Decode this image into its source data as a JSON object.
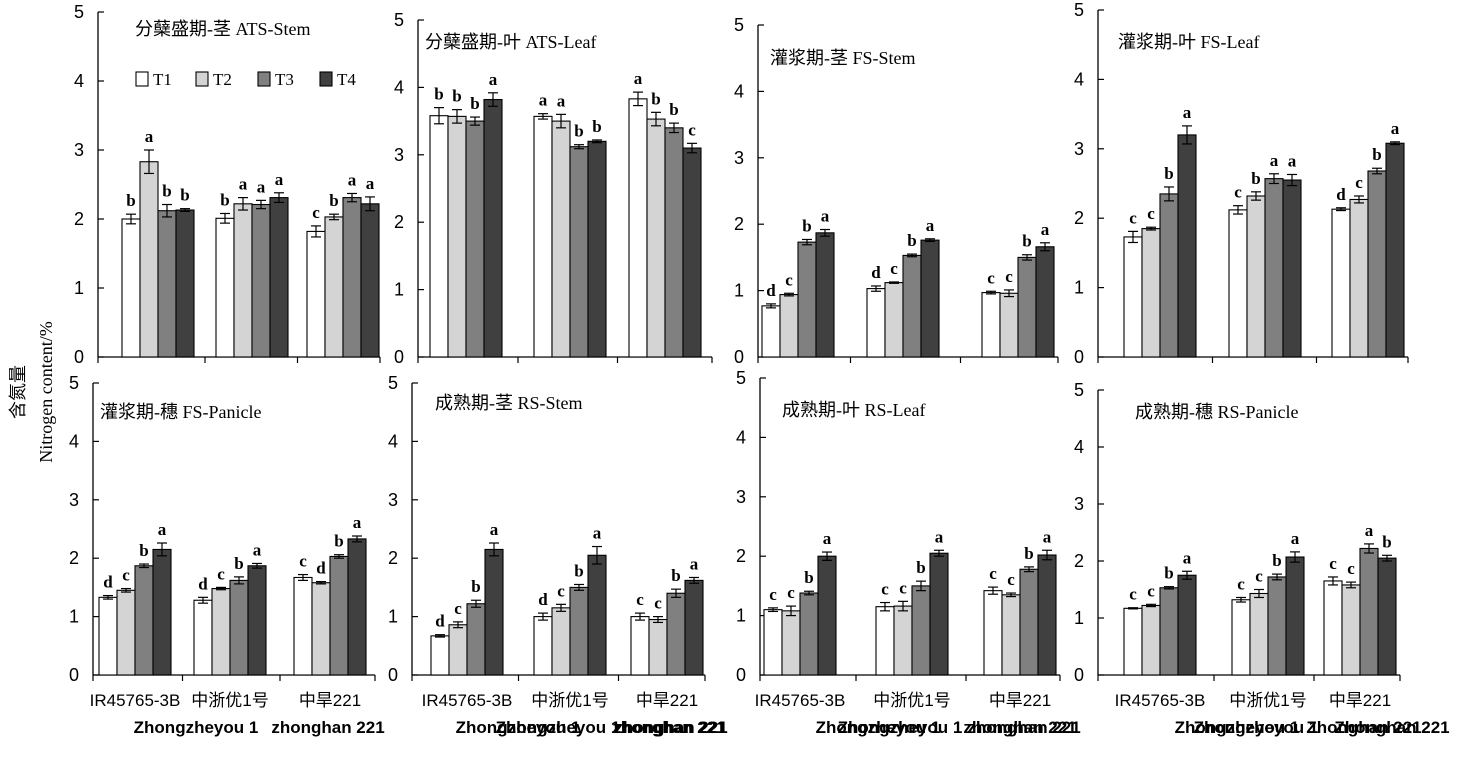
{
  "chart_data": {
    "type": "bar",
    "ylabel_cn": "含氮量",
    "ylabel_en": "Nitrogen content/%",
    "ylim": [
      0,
      5
    ],
    "yticks": [
      "0",
      "1",
      "2",
      "3",
      "4",
      "5"
    ],
    "series_names": [
      "T1",
      "T2",
      "T3",
      "T4"
    ],
    "series_colors": [
      "#ffffff",
      "#d4d4d4",
      "#808080",
      "#404040"
    ],
    "legend_placement": "top-left of first panel",
    "category_labels_top": [
      "IR45765-3B",
      "中浙优1号",
      "中旱221"
    ],
    "panels": [
      {
        "title": "分蘖盛期-茎 ATS-Stem",
        "categories_bottom": [
          "",
          "Zhongzheyou 1",
          "zhonghan 221"
        ],
        "values": [
          [
            2.0,
            2.83,
            2.12,
            2.13
          ],
          [
            2.01,
            2.22,
            2.21,
            2.31
          ],
          [
            1.82,
            2.03,
            2.31,
            2.22
          ]
        ],
        "errors": [
          [
            0.07,
            0.17,
            0.09,
            0.02
          ],
          [
            0.07,
            0.09,
            0.06,
            0.07
          ],
          [
            0.08,
            0.04,
            0.06,
            0.1
          ]
        ],
        "letters": [
          [
            "b",
            "a",
            "b",
            "b"
          ],
          [
            "b",
            "a",
            "a",
            "a"
          ],
          [
            "c",
            "b",
            "a",
            "a"
          ]
        ]
      },
      {
        "title": "分蘖盛期-叶 ATS-Leaf",
        "categories_bottom": [
          "",
          "Zhongzheyou 1",
          "zhonghan 221"
        ],
        "values": [
          [
            3.58,
            3.57,
            3.5,
            3.82
          ],
          [
            3.57,
            3.5,
            3.12,
            3.2
          ],
          [
            3.83,
            3.53,
            3.4,
            3.1
          ]
        ],
        "errors": [
          [
            0.12,
            0.1,
            0.06,
            0.1
          ],
          [
            0.04,
            0.1,
            0.03,
            0.02
          ],
          [
            0.1,
            0.1,
            0.07,
            0.07
          ]
        ],
        "letters": [
          [
            "b",
            "b",
            "b",
            "a"
          ],
          [
            "a",
            "a",
            "b",
            "b"
          ],
          [
            "a",
            "b",
            "b",
            "c"
          ]
        ]
      },
      {
        "title": "灌浆期-茎 FS-Stem",
        "categories_bottom": [
          "",
          "Zhongzheyou 1",
          "zhonghan 221"
        ],
        "values": [
          [
            0.77,
            0.94,
            1.73,
            1.87
          ],
          [
            1.03,
            1.12,
            1.53,
            1.76
          ],
          [
            0.97,
            0.96,
            1.5,
            1.66
          ]
        ],
        "errors": [
          [
            0.03,
            0.02,
            0.04,
            0.05
          ],
          [
            0.04,
            0.01,
            0.02,
            0.02
          ],
          [
            0.02,
            0.05,
            0.04,
            0.06
          ]
        ],
        "letters": [
          [
            "d",
            "c",
            "b",
            "a"
          ],
          [
            "d",
            "c",
            "b",
            "a"
          ],
          [
            "c",
            "c",
            "b",
            "a"
          ]
        ]
      },
      {
        "title": "灌浆期-叶 FS-Leaf",
        "categories_bottom": [
          "",
          "Zhongzheyou 1",
          "Zhonghan 221"
        ],
        "values": [
          [
            1.73,
            1.85,
            2.35,
            3.2
          ],
          [
            2.12,
            2.32,
            2.57,
            2.55
          ],
          [
            2.13,
            2.27,
            2.68,
            3.08
          ]
        ],
        "errors": [
          [
            0.08,
            0.02,
            0.1,
            0.13
          ],
          [
            0.06,
            0.06,
            0.07,
            0.08
          ],
          [
            0.02,
            0.05,
            0.04,
            0.02
          ]
        ],
        "letters": [
          [
            "c",
            "c",
            "b",
            "a"
          ],
          [
            "c",
            "b",
            "a",
            "a"
          ],
          [
            "d",
            "c",
            "b",
            "a"
          ]
        ]
      },
      {
        "title": "灌浆期-穗 FS-Panicle",
        "categories_bottom": [
          "",
          "",
          ""
        ],
        "values": [
          [
            1.33,
            1.45,
            1.87,
            2.15
          ],
          [
            1.28,
            1.48,
            1.62,
            1.87
          ],
          [
            1.67,
            1.58,
            2.03,
            2.33
          ]
        ],
        "errors": [
          [
            0.03,
            0.03,
            0.03,
            0.11
          ],
          [
            0.05,
            0.02,
            0.06,
            0.04
          ],
          [
            0.05,
            0.02,
            0.03,
            0.05
          ]
        ],
        "letters": [
          [
            "d",
            "c",
            "b",
            "a"
          ],
          [
            "d",
            "c",
            "b",
            "a"
          ],
          [
            "c",
            "d",
            "b",
            "a"
          ]
        ]
      },
      {
        "title": "成熟期-茎 RS-Stem",
        "categories_bottom": [
          "",
          "Zhongzheyou 1",
          "zhonghan 221"
        ],
        "values": [
          [
            0.67,
            0.86,
            1.22,
            2.15
          ],
          [
            1.0,
            1.15,
            1.5,
            2.05
          ],
          [
            1.0,
            0.95,
            1.4,
            1.62
          ]
        ],
        "errors": [
          [
            0.02,
            0.05,
            0.06,
            0.11
          ],
          [
            0.06,
            0.06,
            0.05,
            0.15
          ],
          [
            0.06,
            0.05,
            0.07,
            0.05
          ]
        ],
        "letters": [
          [
            "d",
            "c",
            "b",
            "a"
          ],
          [
            "d",
            "c",
            "b",
            "a"
          ],
          [
            "c",
            "c",
            "b",
            "a"
          ]
        ]
      },
      {
        "title": "成熟期-叶 RS-Leaf",
        "categories_bottom": [
          "",
          "Zhongzheyou 1",
          "zhonghan 221"
        ],
        "values": [
          [
            1.1,
            1.08,
            1.38,
            2.0
          ],
          [
            1.15,
            1.16,
            1.5,
            2.05
          ],
          [
            1.42,
            1.35,
            1.78,
            2.02
          ]
        ],
        "errors": [
          [
            0.03,
            0.08,
            0.03,
            0.07
          ],
          [
            0.07,
            0.08,
            0.08,
            0.05
          ],
          [
            0.06,
            0.03,
            0.04,
            0.08
          ]
        ],
        "letters": [
          [
            "c",
            "c",
            "b",
            "a"
          ],
          [
            "c",
            "c",
            "b",
            "a"
          ],
          [
            "c",
            "c",
            "b",
            "a"
          ]
        ]
      },
      {
        "title": "成熟期-穗 RS-Panicle",
        "categories_bottom": [
          "",
          "Zhongzheyou 1",
          "Zhonghan 221"
        ],
        "values": [
          [
            1.17,
            1.22,
            1.53,
            1.75
          ],
          [
            1.32,
            1.43,
            1.72,
            2.07
          ],
          [
            1.65,
            1.58,
            2.22,
            2.05
          ]
        ],
        "errors": [
          [
            0.01,
            0.02,
            0.02,
            0.07
          ],
          [
            0.04,
            0.07,
            0.05,
            0.09
          ],
          [
            0.07,
            0.05,
            0.08,
            0.05
          ]
        ],
        "letters": [
          [
            "c",
            "c",
            "b",
            "a"
          ],
          [
            "c",
            "c",
            "b",
            "a"
          ],
          [
            "c",
            "c",
            "a",
            "b"
          ]
        ]
      }
    ]
  }
}
